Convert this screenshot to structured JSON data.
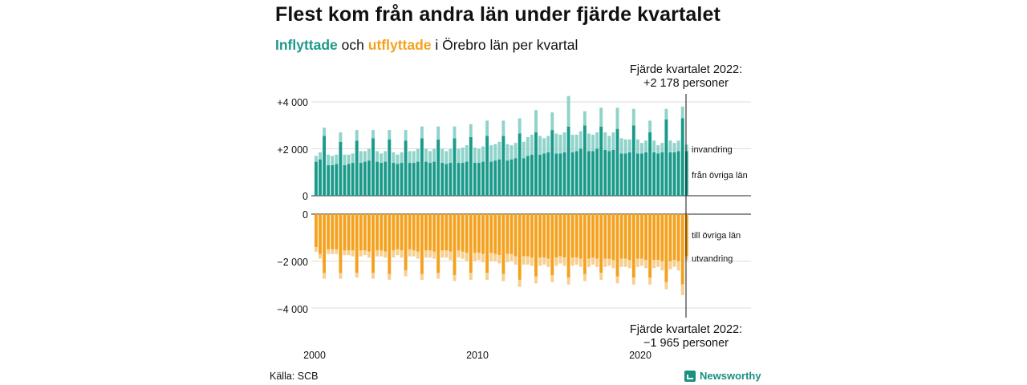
{
  "header": {
    "title": "Flest kom från andra län under fjärde kvartalet",
    "subtitle_in": "Inflyttade",
    "subtitle_mid": " och ",
    "subtitle_out": "utflyttade",
    "subtitle_rest": " i Örebro län per kvartal"
  },
  "footer": {
    "source": "Källa: SCB",
    "brand": "Newsworthy"
  },
  "colors": {
    "in_dark": "#1a9a8a",
    "in_light": "#8fd3ca",
    "out_dark": "#f4a11e",
    "out_light": "#f8cf8f"
  },
  "annotations": {
    "top_line1": "Fjärde kvartalet 2022:",
    "top_line2": "+2 178 personer",
    "bottom_line1": "Fjärde kvartalet 2022:",
    "bottom_line2": "−1 965 personer"
  },
  "chart_data": {
    "type": "bar",
    "stacked": true,
    "x_start_year": 2000,
    "x_quarters": 92,
    "x_ticks": [
      "2000",
      "2010",
      "2020"
    ],
    "y_ticks_in": [
      "+4 000",
      "+2 000",
      "0"
    ],
    "y_ticks_out": [
      "0",
      "−2 000",
      "−4 000"
    ],
    "ylim_in": [
      0,
      4300
    ],
    "ylim_out": [
      -4300,
      0
    ],
    "series_labels": {
      "in_light": "invandring",
      "in_dark": "från övriga län",
      "out_dark": "till övriga län",
      "out_light": "utvandring"
    },
    "grid": true,
    "series": [
      {
        "name": "från övriga län",
        "values": [
          1450,
          1550,
          2550,
          1300,
          1300,
          1350,
          2300,
          1300,
          1350,
          1400,
          2350,
          1400,
          1450,
          1500,
          2450,
          1450,
          1400,
          1450,
          2400,
          1400,
          1350,
          1400,
          2350,
          1400,
          1400,
          1450,
          2450,
          1450,
          1400,
          1450,
          2400,
          1400,
          1350,
          1400,
          2450,
          1400,
          1400,
          1450,
          2500,
          1400,
          1400,
          1450,
          2550,
          1450,
          1500,
          1550,
          2550,
          1500,
          1550,
          1600,
          2650,
          1600,
          1700,
          1750,
          2700,
          1750,
          1800,
          1850,
          2800,
          1800,
          1800,
          1850,
          2950,
          1850,
          1900,
          2000,
          3000,
          1900,
          1900,
          2000,
          2950,
          1950,
          1900,
          1950,
          2850,
          1800,
          1800,
          1850,
          3000,
          1800,
          1800,
          1850,
          2700,
          1850,
          1800,
          1850,
          3250,
          1850,
          1850,
          1900,
          3300,
          1900
        ]
      },
      {
        "name": "invandring",
        "values": [
          250,
          300,
          350,
          450,
          400,
          400,
          400,
          450,
          400,
          400,
          450,
          500,
          450,
          500,
          350,
          450,
          400,
          450,
          400,
          450,
          400,
          450,
          450,
          500,
          500,
          550,
          500,
          550,
          500,
          550,
          550,
          600,
          550,
          600,
          500,
          600,
          650,
          700,
          550,
          650,
          600,
          650,
          650,
          700,
          700,
          750,
          650,
          700,
          600,
          650,
          650,
          700,
          800,
          850,
          950,
          800,
          650,
          700,
          750,
          850,
          800,
          850,
          1300,
          750,
          700,
          750,
          600,
          750,
          700,
          700,
          800,
          750,
          650,
          750,
          900,
          650,
          600,
          550,
          700,
          600,
          450,
          500,
          500,
          500,
          350,
          400,
          450,
          500,
          400,
          450,
          500,
          280
        ]
      },
      {
        "name": "till övriga län",
        "values": [
          -1400,
          -1700,
          -2500,
          -1500,
          -1500,
          -1500,
          -2500,
          -1550,
          -1550,
          -1550,
          -2500,
          -1550,
          -1550,
          -1600,
          -2500,
          -1550,
          -1550,
          -1600,
          -2550,
          -1550,
          -1500,
          -1550,
          -2400,
          -1500,
          -1550,
          -1600,
          -2550,
          -1550,
          -1550,
          -1600,
          -2500,
          -1550,
          -1550,
          -1600,
          -2600,
          -1550,
          -1600,
          -1650,
          -2500,
          -1650,
          -1650,
          -1700,
          -2500,
          -1650,
          -1700,
          -1750,
          -2550,
          -1700,
          -1700,
          -1800,
          -2800,
          -1800,
          -1800,
          -1850,
          -2650,
          -1850,
          -1850,
          -1900,
          -2600,
          -1850,
          -1800,
          -1850,
          -2700,
          -1850,
          -1850,
          -1900,
          -2550,
          -1900,
          -1850,
          -1900,
          -2500,
          -1900,
          -1900,
          -1950,
          -2650,
          -1900,
          -1900,
          -1950,
          -2700,
          -1900,
          -1900,
          -1950,
          -2700,
          -1950,
          -1950,
          -2000,
          -2900,
          -2000,
          -1950,
          -2000,
          -3000,
          -1800
        ]
      },
      {
        "name": "utvandring",
        "values": [
          -200,
          -200,
          -250,
          -200,
          -200,
          -200,
          -250,
          -200,
          -200,
          -250,
          -200,
          -250,
          -200,
          -250,
          -250,
          -250,
          -250,
          -250,
          -250,
          -300,
          -250,
          -300,
          -250,
          -300,
          -250,
          -300,
          -250,
          -300,
          -300,
          -300,
          -250,
          -300,
          -300,
          -350,
          -250,
          -300,
          -300,
          -350,
          -300,
          -350,
          -300,
          -350,
          -300,
          -350,
          -300,
          -350,
          -300,
          -350,
          -300,
          -350,
          -300,
          -350,
          -350,
          -350,
          -300,
          -350,
          -300,
          -350,
          -300,
          -350,
          -300,
          -350,
          -300,
          -350,
          -300,
          -350,
          -300,
          -350,
          -300,
          -350,
          -300,
          -350,
          -300,
          -350,
          -300,
          -350,
          -350,
          -350,
          -300,
          -350,
          -300,
          -350,
          -300,
          -350,
          -300,
          -400,
          -300,
          -350,
          -300,
          -400,
          -450,
          -165
        ]
      }
    ]
  }
}
